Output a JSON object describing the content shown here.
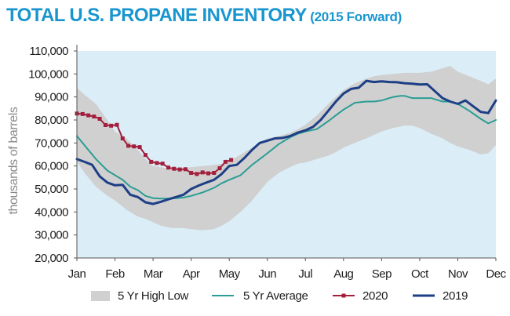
{
  "chart_data": {
    "type": "line",
    "title": "TOTAL U.S. PROPANE INVENTORY",
    "subtitle": "(2015 Forward)",
    "ylabel": "thousands of barrels",
    "xlabel": "",
    "ylim": [
      20000,
      110000
    ],
    "yticks": [
      20000,
      30000,
      40000,
      50000,
      60000,
      70000,
      80000,
      90000,
      100000,
      110000
    ],
    "ytick_labels": [
      "20,000",
      "30,000",
      "40,000",
      "50,000",
      "60,000",
      "70,000",
      "80,000",
      "90,000",
      "100,000",
      "110,000"
    ],
    "xlim": [
      1,
      12
    ],
    "xticks": [
      1,
      2,
      3,
      4,
      5,
      6,
      7,
      8,
      9,
      10,
      11,
      12
    ],
    "xtick_labels": [
      "Jan",
      "Feb",
      "Mar",
      "Apr",
      "May",
      "Jun",
      "Jul",
      "Aug",
      "Sep",
      "Oct",
      "Nov",
      "Dec"
    ],
    "grid": false,
    "legend_position": "bottom",
    "colors": {
      "band": "#d0d0d0",
      "plot_bg": "#dbeef8",
      "avg": "#2a9d94",
      "s2020": "#a2203d",
      "s2019": "#1d3f86",
      "title": "#1a96cf"
    },
    "series": [
      {
        "name": "5 Yr High Low",
        "kind": "band",
        "x": [
          1.0,
          1.2,
          1.5,
          1.8,
          2.0,
          2.3,
          2.6,
          2.8,
          3.0,
          3.2,
          3.5,
          3.8,
          4.0,
          4.3,
          4.6,
          4.8,
          5.0,
          5.3,
          5.6,
          5.8,
          6.0,
          6.3,
          6.6,
          6.8,
          7.0,
          7.3,
          7.6,
          7.8,
          8.0,
          8.3,
          8.6,
          8.8,
          9.0,
          9.3,
          9.6,
          9.8,
          10.0,
          10.3,
          10.6,
          10.8,
          11.0,
          11.3,
          11.6,
          11.8,
          12.0
        ],
        "high": [
          94000,
          91000,
          87000,
          80000,
          75000,
          72000,
          67000,
          63000,
          60000,
          59500,
          58500,
          59000,
          59500,
          60000,
          60500,
          61000,
          62000,
          65000,
          68000,
          70000,
          72000,
          73000,
          74500,
          76000,
          78000,
          82000,
          87000,
          90000,
          93000,
          96000,
          98000,
          99000,
          99500,
          100000,
          100500,
          100500,
          100500,
          101000,
          102500,
          103500,
          101000,
          99000,
          97000,
          95500,
          98000
        ],
        "low": [
          62000,
          57000,
          51000,
          47000,
          45000,
          41000,
          38000,
          37000,
          35500,
          34000,
          33000,
          33000,
          32500,
          32000,
          32500,
          34000,
          36000,
          40000,
          45000,
          49000,
          53000,
          57000,
          59500,
          61000,
          61500,
          63000,
          64500,
          66000,
          68000,
          70000,
          72000,
          73500,
          75000,
          76500,
          77500,
          77500,
          76500,
          74000,
          72000,
          70000,
          68500,
          67000,
          65000,
          65500,
          69000
        ]
      },
      {
        "name": "5 Yr Average",
        "kind": "line",
        "x": [
          1.0,
          1.2,
          1.5,
          1.8,
          2.0,
          2.2,
          2.4,
          2.6,
          2.8,
          3.0,
          3.2,
          3.4,
          3.6,
          3.8,
          4.0,
          4.3,
          4.6,
          4.8,
          5.0,
          5.3,
          5.6,
          5.8,
          6.0,
          6.3,
          6.6,
          6.8,
          7.0,
          7.3,
          7.6,
          7.8,
          8.0,
          8.3,
          8.6,
          8.8,
          9.0,
          9.3,
          9.5,
          9.6,
          9.8,
          10.0,
          10.3,
          10.6,
          10.8,
          11.0,
          11.3,
          11.6,
          11.8,
          12.0
        ],
        "y": [
          73000,
          69000,
          63000,
          58000,
          56000,
          54000,
          51000,
          49500,
          47000,
          46000,
          45800,
          45800,
          46000,
          46300,
          47000,
          48500,
          50500,
          52500,
          54000,
          56000,
          60500,
          63000,
          65500,
          69500,
          72500,
          74000,
          75000,
          76000,
          79500,
          82000,
          84500,
          87500,
          88000,
          88000,
          88500,
          90000,
          90500,
          90500,
          89500,
          89500,
          89500,
          88000,
          88000,
          87000,
          84000,
          80500,
          78500,
          80000
        ]
      },
      {
        "name": "2020",
        "kind": "line_markers",
        "x": [
          1.0,
          1.15,
          1.3,
          1.45,
          1.6,
          1.75,
          1.9,
          2.05,
          2.2,
          2.35,
          2.5,
          2.65,
          2.8,
          2.95,
          3.1,
          3.25,
          3.4,
          3.55,
          3.7,
          3.85,
          4.0,
          4.15,
          4.3,
          4.45,
          4.6,
          4.75,
          4.9,
          5.05
        ],
        "y": [
          82800,
          82600,
          82000,
          81500,
          80500,
          77800,
          77500,
          77900,
          72000,
          68800,
          68500,
          68200,
          64800,
          61800,
          61300,
          61000,
          59300,
          58800,
          58500,
          58600,
          57000,
          56500,
          57200,
          56800,
          57000,
          59000,
          61800,
          62600
        ]
      },
      {
        "name": "2019",
        "kind": "line",
        "x": [
          1.0,
          1.2,
          1.4,
          1.6,
          1.8,
          2.0,
          2.2,
          2.4,
          2.6,
          2.8,
          3.0,
          3.2,
          3.4,
          3.6,
          3.8,
          4.0,
          4.2,
          4.4,
          4.6,
          4.8,
          5.0,
          5.2,
          5.4,
          5.6,
          5.8,
          6.0,
          6.2,
          6.4,
          6.6,
          6.8,
          7.0,
          7.2,
          7.4,
          7.6,
          7.8,
          8.0,
          8.2,
          8.4,
          8.6,
          8.8,
          9.0,
          9.2,
          9.4,
          9.6,
          9.8,
          10.0,
          10.2,
          10.4,
          10.6,
          10.8,
          11.0,
          11.2,
          11.4,
          11.6,
          11.8,
          12.0
        ],
        "y": [
          63000,
          61800,
          60500,
          55500,
          52800,
          51600,
          51800,
          47500,
          46500,
          44200,
          43500,
          44400,
          45500,
          46500,
          47500,
          50000,
          51500,
          52800,
          54000,
          56500,
          60000,
          60500,
          63500,
          67000,
          70000,
          71000,
          72000,
          72200,
          73000,
          74500,
          75500,
          77000,
          80000,
          84000,
          88000,
          91500,
          93500,
          94000,
          97000,
          96500,
          96800,
          96500,
          96400,
          96000,
          95800,
          95400,
          95500,
          92500,
          89500,
          88000,
          87000,
          88500,
          86000,
          83500,
          83000,
          88500
        ]
      }
    ]
  }
}
